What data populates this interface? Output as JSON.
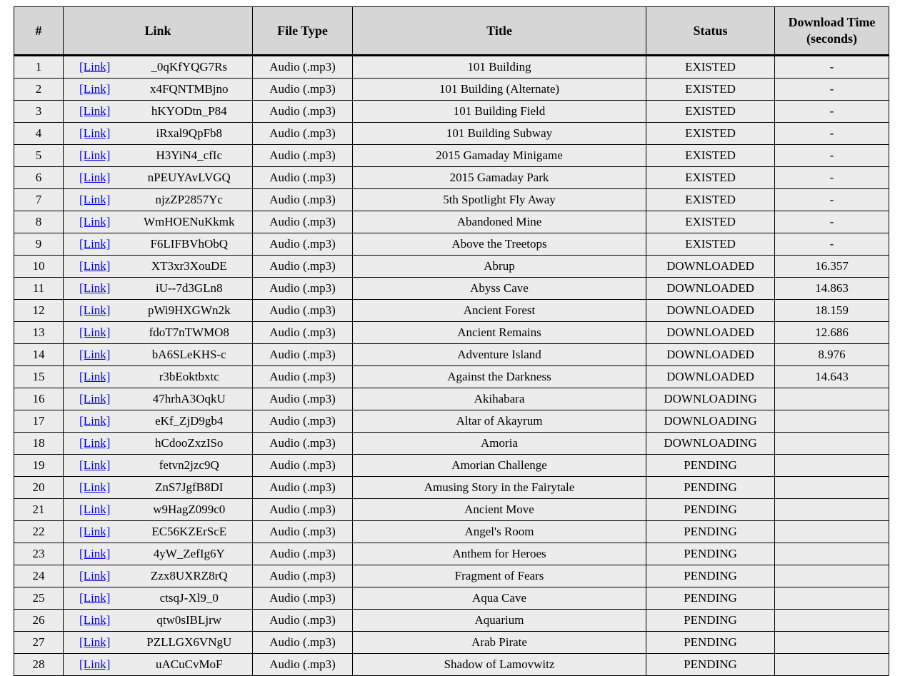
{
  "table": {
    "headers": {
      "num": "#",
      "link": "Link",
      "file_type": "File Type",
      "title": "Title",
      "status": "Status",
      "time_line1": "Download Time",
      "time_line2": "(seconds)"
    },
    "status_colors": {
      "EXISTED": "#2e7cf6",
      "DOWNLOADED": "#0a7a0a",
      "DOWNLOADING": "#ffff00",
      "PENDING": "#ff0000"
    },
    "rows": [
      {
        "num": "1",
        "link": "[Link]",
        "id": "_0qKfYQG7Rs",
        "type": "Audio (.mp3)",
        "title": "101 Building",
        "status": "EXISTED",
        "time": "-"
      },
      {
        "num": "2",
        "link": "[Link]",
        "id": "x4FQNTMBjno",
        "type": "Audio (.mp3)",
        "title": "101 Building (Alternate)",
        "status": "EXISTED",
        "time": "-"
      },
      {
        "num": "3",
        "link": "[Link]",
        "id": "hKYODtn_P84",
        "type": "Audio (.mp3)",
        "title": "101 Building Field",
        "status": "EXISTED",
        "time": "-"
      },
      {
        "num": "4",
        "link": "[Link]",
        "id": "iRxal9QpFb8",
        "type": "Audio (.mp3)",
        "title": "101 Building Subway",
        "status": "EXISTED",
        "time": "-"
      },
      {
        "num": "5",
        "link": "[Link]",
        "id": "H3YiN4_cfIc",
        "type": "Audio (.mp3)",
        "title": "2015 Gamaday Minigame",
        "status": "EXISTED",
        "time": "-"
      },
      {
        "num": "6",
        "link": "[Link]",
        "id": "nPEUYAvLVGQ",
        "type": "Audio (.mp3)",
        "title": "2015 Gamaday Park",
        "status": "EXISTED",
        "time": "-"
      },
      {
        "num": "7",
        "link": "[Link]",
        "id": "njzZP2857Yc",
        "type": "Audio (.mp3)",
        "title": "5th Spotlight Fly Away",
        "status": "EXISTED",
        "time": "-"
      },
      {
        "num": "8",
        "link": "[Link]",
        "id": "WmHOENuKkmk",
        "type": "Audio (.mp3)",
        "title": "Abandoned Mine",
        "status": "EXISTED",
        "time": "-"
      },
      {
        "num": "9",
        "link": "[Link]",
        "id": "F6LIFBVhObQ",
        "type": "Audio (.mp3)",
        "title": "Above the Treetops",
        "status": "EXISTED",
        "time": "-"
      },
      {
        "num": "10",
        "link": "[Link]",
        "id": "XT3xr3XouDE",
        "type": "Audio (.mp3)",
        "title": "Abrup",
        "status": "DOWNLOADED",
        "time": "16.357"
      },
      {
        "num": "11",
        "link": "[Link]",
        "id": "iU--7d3GLn8",
        "type": "Audio (.mp3)",
        "title": "Abyss Cave",
        "status": "DOWNLOADED",
        "time": "14.863"
      },
      {
        "num": "12",
        "link": "[Link]",
        "id": "pWi9HXGWn2k",
        "type": "Audio (.mp3)",
        "title": "Ancient Forest",
        "status": "DOWNLOADED",
        "time": "18.159"
      },
      {
        "num": "13",
        "link": "[Link]",
        "id": "fdoT7nTWMO8",
        "type": "Audio (.mp3)",
        "title": "Ancient Remains",
        "status": "DOWNLOADED",
        "time": "12.686"
      },
      {
        "num": "14",
        "link": "[Link]",
        "id": "bA6SLeKHS-c",
        "type": "Audio (.mp3)",
        "title": "Adventure Island",
        "status": "DOWNLOADED",
        "time": "8.976"
      },
      {
        "num": "15",
        "link": "[Link]",
        "id": "r3bEoktbxtc",
        "type": "Audio (.mp3)",
        "title": "Against the Darkness",
        "status": "DOWNLOADED",
        "time": "14.643"
      },
      {
        "num": "16",
        "link": "[Link]",
        "id": "47hrhA3OqkU",
        "type": "Audio (.mp3)",
        "title": "Akihabara",
        "status": "DOWNLOADING",
        "time": ""
      },
      {
        "num": "17",
        "link": "[Link]",
        "id": "eKf_ZjD9gb4",
        "type": "Audio (.mp3)",
        "title": "Altar of Akayrum",
        "status": "DOWNLOADING",
        "time": ""
      },
      {
        "num": "18",
        "link": "[Link]",
        "id": "hCdooZxzISo",
        "type": "Audio (.mp3)",
        "title": "Amoria",
        "status": "DOWNLOADING",
        "time": ""
      },
      {
        "num": "19",
        "link": "[Link]",
        "id": "fetvn2jzc9Q",
        "type": "Audio (.mp3)",
        "title": "Amorian Challenge",
        "status": "PENDING",
        "time": ""
      },
      {
        "num": "20",
        "link": "[Link]",
        "id": "ZnS7JgfB8DI",
        "type": "Audio (.mp3)",
        "title": "Amusing Story in the Fairytale",
        "status": "PENDING",
        "time": ""
      },
      {
        "num": "21",
        "link": "[Link]",
        "id": "w9HagZ099c0",
        "type": "Audio (.mp3)",
        "title": "Ancient Move",
        "status": "PENDING",
        "time": ""
      },
      {
        "num": "22",
        "link": "[Link]",
        "id": "EC56KZErScE",
        "type": "Audio (.mp3)",
        "title": "Angel's Room",
        "status": "PENDING",
        "time": ""
      },
      {
        "num": "23",
        "link": "[Link]",
        "id": "4yW_ZefIg6Y",
        "type": "Audio (.mp3)",
        "title": "Anthem for Heroes",
        "status": "PENDING",
        "time": ""
      },
      {
        "num": "24",
        "link": "[Link]",
        "id": "Zzx8UXRZ8rQ",
        "type": "Audio (.mp3)",
        "title": "Fragment of Fears",
        "status": "PENDING",
        "time": ""
      },
      {
        "num": "25",
        "link": "[Link]",
        "id": "ctsqJ-Xl9_0",
        "type": "Audio (.mp3)",
        "title": "Aqua Cave",
        "status": "PENDING",
        "time": ""
      },
      {
        "num": "26",
        "link": "[Link]",
        "id": "qtw0sIBLjrw",
        "type": "Audio (.mp3)",
        "title": "Aquarium",
        "status": "PENDING",
        "time": ""
      },
      {
        "num": "27",
        "link": "[Link]",
        "id": "PZLLGX6VNgU",
        "type": "Audio (.mp3)",
        "title": "Arab Pirate",
        "status": "PENDING",
        "time": ""
      },
      {
        "num": "28",
        "link": "[Link]",
        "id": "uACuCvMoF",
        "type": "Audio (.mp3)",
        "title": "Shadow of Lamovwitz",
        "status": "PENDING",
        "time": ""
      }
    ]
  }
}
